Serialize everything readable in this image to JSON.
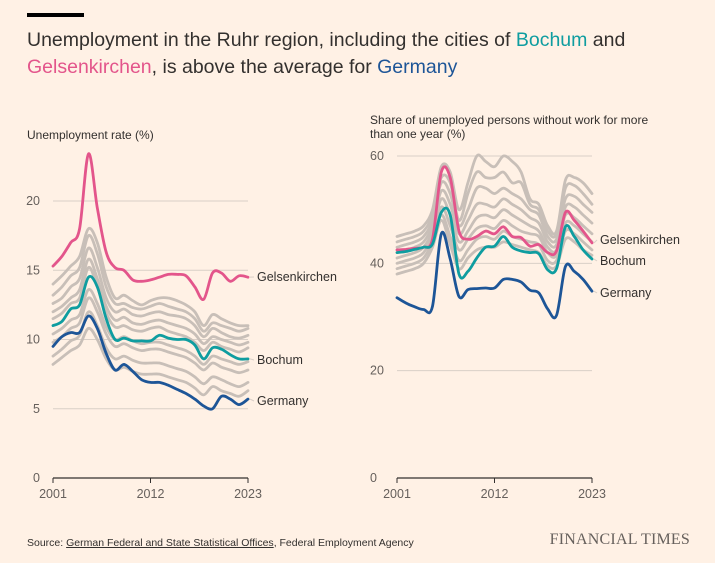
{
  "title": {
    "part1": "Unemployment in the Ruhr region, including the cities of ",
    "bochum": "Bochum",
    "part2": " and",
    "gelsenkirchen": "Gelsenkirchen",
    "part3": ", is above the average for ",
    "germany": "Germany"
  },
  "colors": {
    "background": "#fff1e5",
    "gelsenkirchen": "#e3558b",
    "bochum": "#0f9da0",
    "germany": "#1d5597",
    "other_cities": "#c8bfb8",
    "grid": "#d9cfc7",
    "baseline": "#33302e"
  },
  "source": {
    "prefix": "Source: ",
    "link1": "German Federal and State Statistical Offices",
    "rest": ", Federal Employment Agency"
  },
  "brand": "FINANCIAL TIMES",
  "chart_data": [
    {
      "type": "line",
      "title": "Unemployment rate (%)",
      "xlim": [
        2001,
        2023
      ],
      "ylim": [
        0,
        23
      ],
      "yticks": [
        0,
        5,
        10,
        15,
        20
      ],
      "xticks": [
        "2001",
        "2012",
        "2023"
      ],
      "grid": true,
      "x": [
        2001,
        2002,
        2003,
        2004,
        2005,
        2006,
        2007,
        2008,
        2009,
        2010,
        2011,
        2012,
        2013,
        2014,
        2015,
        2016,
        2017,
        2018,
        2019,
        2020,
        2021,
        2022,
        2023
      ],
      "series": [
        {
          "name": "Gelsenkirchen",
          "highlight": true,
          "values": [
            15.3,
            16.0,
            17.0,
            18.0,
            23.4,
            19.5,
            16.3,
            15.2,
            15.0,
            14.3,
            14.2,
            14.3,
            14.5,
            14.7,
            14.7,
            14.6,
            13.8,
            12.9,
            14.8,
            14.8,
            14.2,
            14.6,
            14.5
          ]
        },
        {
          "name": "Bochum",
          "highlight": true,
          "values": [
            11.0,
            11.3,
            12.2,
            12.5,
            14.5,
            13.8,
            11.5,
            10.0,
            10.1,
            9.9,
            9.9,
            9.9,
            10.3,
            10.1,
            10.0,
            10.0,
            9.6,
            8.6,
            9.4,
            9.3,
            8.9,
            8.6,
            8.6
          ]
        },
        {
          "name": "Germany",
          "highlight": true,
          "values": [
            9.5,
            10.2,
            10.5,
            10.5,
            11.7,
            10.8,
            9.0,
            7.8,
            8.2,
            7.7,
            7.1,
            6.9,
            6.9,
            6.7,
            6.4,
            6.1,
            5.7,
            5.2,
            5.0,
            5.9,
            5.7,
            5.3,
            5.7
          ]
        },
        {
          "highlight": false,
          "values": [
            14.0,
            14.6,
            15.3,
            16.0,
            18.0,
            17.0,
            14.5,
            13.0,
            13.2,
            12.8,
            12.5,
            12.8,
            13.0,
            13.0,
            12.8,
            12.5,
            12.0,
            11.0,
            11.8,
            11.5,
            11.2,
            11.0,
            11.0
          ]
        },
        {
          "highlight": false,
          "values": [
            13.2,
            13.8,
            14.6,
            15.2,
            17.5,
            16.2,
            13.8,
            12.6,
            12.6,
            12.3,
            12.2,
            12.4,
            12.6,
            12.4,
            12.2,
            12.0,
            11.5,
            10.6,
            11.2,
            11.0,
            10.8,
            10.6,
            10.8
          ]
        },
        {
          "highlight": false,
          "values": [
            12.6,
            13.0,
            13.8,
            14.4,
            16.6,
            15.2,
            13.0,
            12.0,
            12.2,
            11.8,
            11.7,
            11.9,
            12.0,
            11.8,
            11.7,
            11.5,
            11.0,
            10.2,
            10.8,
            10.5,
            10.2,
            10.1,
            10.3
          ]
        },
        {
          "highlight": false,
          "values": [
            12.0,
            12.4,
            13.0,
            13.6,
            15.8,
            14.4,
            12.4,
            11.4,
            11.6,
            11.2,
            11.1,
            11.3,
            11.4,
            11.2,
            11.0,
            10.8,
            10.4,
            9.7,
            10.2,
            10.0,
            9.8,
            9.6,
            9.8
          ]
        },
        {
          "highlight": false,
          "values": [
            11.5,
            11.9,
            12.6,
            13.0,
            15.2,
            13.8,
            11.9,
            10.9,
            11.0,
            10.7,
            10.6,
            10.8,
            10.9,
            10.6,
            10.4,
            10.2,
            9.8,
            9.2,
            9.8,
            9.5,
            9.3,
            9.1,
            9.4
          ]
        },
        {
          "highlight": false,
          "values": [
            10.4,
            10.8,
            11.4,
            11.8,
            13.6,
            12.6,
            10.9,
            10.0,
            10.2,
            9.9,
            9.7,
            9.8,
            9.8,
            9.6,
            9.4,
            9.2,
            8.8,
            8.2,
            8.8,
            8.6,
            8.4,
            8.2,
            8.4
          ]
        },
        {
          "highlight": false,
          "values": [
            9.8,
            10.2,
            10.8,
            11.2,
            13.0,
            12.0,
            10.4,
            9.5,
            9.7,
            9.4,
            9.2,
            9.3,
            9.3,
            9.1,
            8.9,
            8.7,
            8.3,
            7.8,
            8.3,
            8.0,
            7.8,
            7.6,
            7.8
          ]
        },
        {
          "highlight": false,
          "values": [
            8.8,
            9.3,
            9.9,
            10.3,
            12.0,
            11.0,
            9.4,
            8.6,
            8.8,
            8.5,
            8.3,
            8.3,
            8.3,
            8.1,
            7.9,
            7.7,
            7.3,
            6.8,
            7.3,
            7.1,
            6.8,
            6.6,
            6.9
          ]
        },
        {
          "highlight": false,
          "values": [
            8.2,
            8.7,
            9.2,
            9.6,
            10.8,
            10.0,
            8.6,
            7.8,
            8.0,
            7.7,
            7.5,
            7.5,
            7.5,
            7.3,
            7.1,
            6.9,
            6.5,
            6.0,
            6.6,
            6.3,
            6.1,
            5.9,
            6.3
          ]
        }
      ]
    },
    {
      "type": "line",
      "title": "Share of unemployed persons without work for more than one year (%)",
      "xlim": [
        2001,
        2023
      ],
      "ylim": [
        0,
        60
      ],
      "yticks": [
        0,
        20,
        40,
        60
      ],
      "xticks": [
        "2001",
        "2012",
        "2023"
      ],
      "grid": true,
      "x": [
        2001,
        2002,
        2003,
        2004,
        2005,
        2006,
        2007,
        2008,
        2009,
        2010,
        2011,
        2012,
        2013,
        2014,
        2015,
        2016,
        2017,
        2018,
        2019,
        2020,
        2021,
        2022,
        2023
      ],
      "series": [
        {
          "name": "Gelsenkirchen",
          "highlight": true,
          "values": [
            42.5,
            42.6,
            42.8,
            43.0,
            44.5,
            57.0,
            56.0,
            46.0,
            44.5,
            45.0,
            46.0,
            45.5,
            46.8,
            45.0,
            44.8,
            43.2,
            43.5,
            42.0,
            42.3,
            49.5,
            48.0,
            46.0,
            43.8
          ]
        },
        {
          "name": "Bochum",
          "highlight": true,
          "values": [
            42.0,
            42.2,
            42.6,
            43.0,
            43.6,
            49.5,
            49.0,
            38.0,
            38.5,
            41.0,
            43.0,
            43.2,
            45.0,
            43.0,
            42.3,
            42.0,
            41.8,
            38.8,
            39.0,
            46.8,
            45.0,
            42.5,
            40.8
          ]
        },
        {
          "name": "Germany",
          "highlight": true,
          "values": [
            33.6,
            32.6,
            31.9,
            31.4,
            32.0,
            45.5,
            40.8,
            33.8,
            35.1,
            35.3,
            35.4,
            35.4,
            37.0,
            37.0,
            36.5,
            35.0,
            34.5,
            31.5,
            30.3,
            39.4,
            38.5,
            37.0,
            34.8
          ]
        },
        {
          "highlight": false,
          "values": [
            45.0,
            45.5,
            46.0,
            47.0,
            50.0,
            58.0,
            57.0,
            50.0,
            55.0,
            60.0,
            59.0,
            58.0,
            60.0,
            59.0,
            57.0,
            52.0,
            51.0,
            47.0,
            46.0,
            55.5,
            56.0,
            55.0,
            53.0
          ]
        },
        {
          "highlight": false,
          "values": [
            44.0,
            44.5,
            45.0,
            46.0,
            49.0,
            56.0,
            55.0,
            48.0,
            53.0,
            57.0,
            56.0,
            56.0,
            57.0,
            55.0,
            55.0,
            51.0,
            50.0,
            46.0,
            45.5,
            54.0,
            54.5,
            53.0,
            51.0
          ]
        },
        {
          "highlight": false,
          "values": [
            43.0,
            43.5,
            44.0,
            45.0,
            48.0,
            55.0,
            53.0,
            47.0,
            50.0,
            54.0,
            54.0,
            53.0,
            54.0,
            53.0,
            52.0,
            50.0,
            49.0,
            45.0,
            44.5,
            52.0,
            52.5,
            51.0,
            49.5
          ]
        },
        {
          "highlight": false,
          "values": [
            42.0,
            42.5,
            43.0,
            44.0,
            47.0,
            53.5,
            51.0,
            45.5,
            48.0,
            51.0,
            51.0,
            50.5,
            52.0,
            51.0,
            50.0,
            48.5,
            47.5,
            44.0,
            43.5,
            50.5,
            50.5,
            49.0,
            47.5
          ]
        },
        {
          "highlight": false,
          "values": [
            41.0,
            41.5,
            42.0,
            43.0,
            46.0,
            52.0,
            49.0,
            44.0,
            46.0,
            48.5,
            49.0,
            48.5,
            50.0,
            49.0,
            48.0,
            47.0,
            46.0,
            43.0,
            42.5,
            49.0,
            48.5,
            47.0,
            45.5
          ]
        },
        {
          "highlight": false,
          "values": [
            40.0,
            40.5,
            41.0,
            42.0,
            45.0,
            50.5,
            47.0,
            42.5,
            44.5,
            46.5,
            47.0,
            46.5,
            48.0,
            47.0,
            46.0,
            45.5,
            45.0,
            42.0,
            41.5,
            47.5,
            47.0,
            45.5,
            44.0
          ]
        },
        {
          "highlight": false,
          "values": [
            39.0,
            39.5,
            40.0,
            41.0,
            44.0,
            49.0,
            45.0,
            40.5,
            42.5,
            44.5,
            45.0,
            44.5,
            46.0,
            45.0,
            44.5,
            44.0,
            43.5,
            40.5,
            40.5,
            46.0,
            45.5,
            44.0,
            42.5
          ]
        },
        {
          "highlight": false,
          "values": [
            38.0,
            38.5,
            39.0,
            40.0,
            43.0,
            48.0,
            43.5,
            39.0,
            41.0,
            42.5,
            43.0,
            43.0,
            44.0,
            43.5,
            43.0,
            42.5,
            42.0,
            39.5,
            39.5,
            44.5,
            44.0,
            42.5,
            41.5
          ]
        }
      ]
    }
  ]
}
